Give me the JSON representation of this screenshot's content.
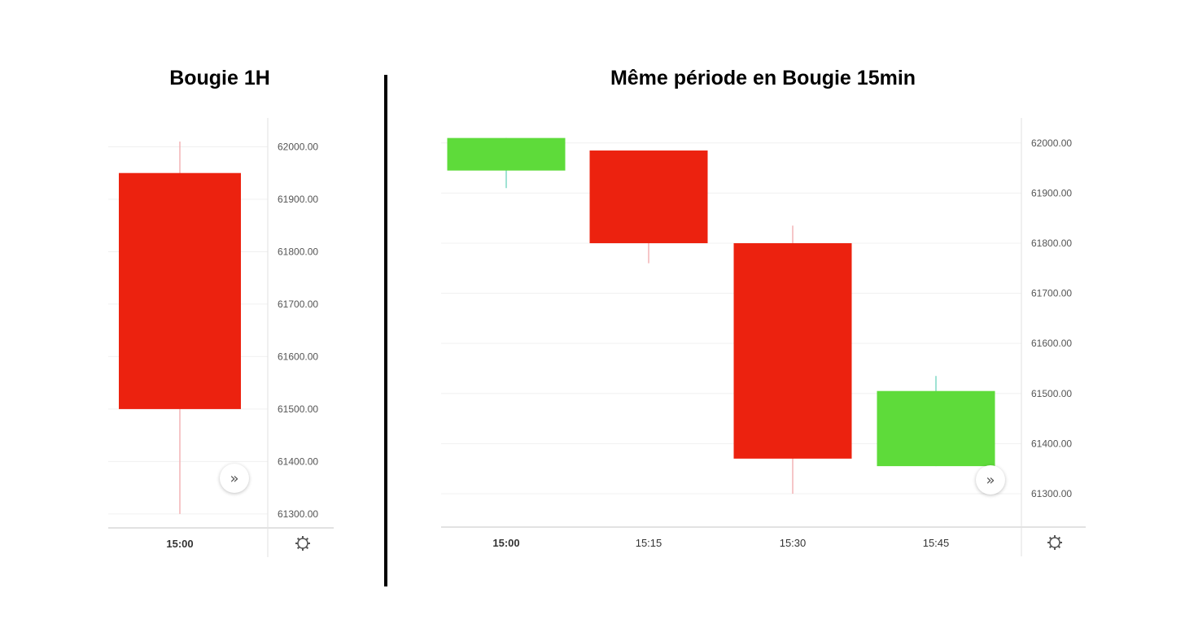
{
  "charts": {
    "left": {
      "title": "Bougie 1H"
    },
    "right": {
      "title": "Même période en Bougie 15min"
    }
  },
  "icons": {
    "scroll_right": "double-chevron-right-icon",
    "settings": "gear-icon"
  },
  "colors": {
    "bullish": "#5edb3a",
    "bearish": "#ec220f",
    "bullish_wick": "#7fd8c6",
    "bearish_wick": "#f3b3b6",
    "grid": "#f0f0f0",
    "axis_line": "#e2e2e2"
  },
  "chart_data": [
    {
      "type": "candlestick",
      "title": "Bougie 1H",
      "categories": [
        "15:00"
      ],
      "candles": [
        {
          "time": "15:00",
          "open": 61950,
          "high": 62010,
          "low": 61300,
          "close": 61500
        }
      ],
      "yticks": [
        "62000.00",
        "61900.00",
        "61800.00",
        "61700.00",
        "61600.00",
        "61500.00",
        "61400.00",
        "61300.00"
      ],
      "ylim": [
        61275,
        62055
      ],
      "grid": true
    },
    {
      "type": "candlestick",
      "title": "Même période en Bougie 15min",
      "categories": [
        "15:00",
        "15:15",
        "15:30",
        "15:45"
      ],
      "candles": [
        {
          "time": "15:00",
          "open": 61945,
          "high": 62010,
          "low": 61910,
          "close": 62010
        },
        {
          "time": "15:15",
          "open": 61985,
          "high": 61985,
          "low": 61760,
          "close": 61800
        },
        {
          "time": "15:30",
          "open": 61800,
          "high": 61835,
          "low": 61300,
          "close": 61370
        },
        {
          "time": "15:45",
          "open": 61355,
          "high": 61535,
          "low": 61355,
          "close": 61505
        }
      ],
      "yticks": [
        "62000.00",
        "61900.00",
        "61800.00",
        "61700.00",
        "61600.00",
        "61500.00",
        "61400.00",
        "61300.00"
      ],
      "ylim": [
        61235,
        62050
      ],
      "grid": true
    }
  ]
}
